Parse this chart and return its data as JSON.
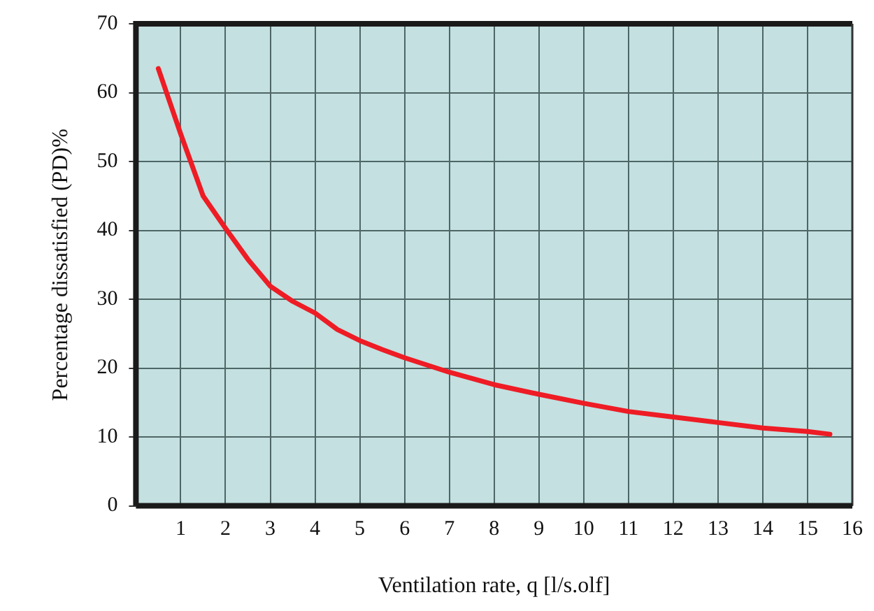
{
  "chart_data": {
    "type": "line",
    "xlabel": "Ventilation rate, q [l/s.olf]",
    "ylabel": "Percentage dissatisfied (PD)%",
    "x": [
      0.5,
      1,
      1.5,
      2,
      2.5,
      3,
      3.5,
      4,
      4.5,
      5,
      5.5,
      6,
      7,
      8,
      9,
      10,
      11,
      12,
      13,
      14,
      15,
      15.5
    ],
    "series": [
      {
        "color": "#ee1c25",
        "values": [
          63.5,
          54,
          45,
          40.3,
          35.8,
          31.9,
          29.7,
          28,
          25.6,
          24,
          22.7,
          21.5,
          19.4,
          17.6,
          16.2,
          14.9,
          13.7,
          12.9,
          12.1,
          11.3,
          10.8,
          10.4
        ]
      }
    ],
    "xlim": [
      0,
      16
    ],
    "xticks": [
      1,
      2,
      3,
      4,
      5,
      6,
      7,
      8,
      9,
      10,
      11,
      12,
      13,
      14,
      15,
      16
    ],
    "ylim": [
      0,
      70
    ],
    "yticks": [
      0,
      10,
      20,
      30,
      40,
      50,
      60,
      70
    ],
    "grid": true,
    "legend": false,
    "marker": "none",
    "line_style": "solid"
  }
}
